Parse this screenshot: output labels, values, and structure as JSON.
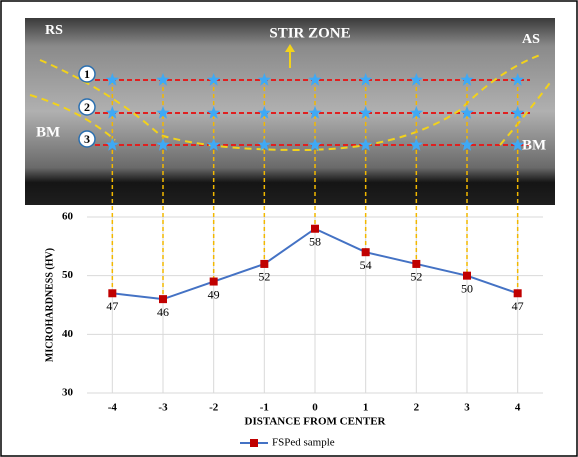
{
  "micrograph": {
    "left_side": "RS",
    "right_side": "AS",
    "zone": "STIR ZONE",
    "base_left": "BM",
    "base_right": "BM",
    "rows": [
      "1",
      "2",
      "3"
    ]
  },
  "chart_data": {
    "type": "line",
    "x": [
      -4,
      -3,
      -2,
      -1,
      0,
      1,
      2,
      3,
      4
    ],
    "series": [
      {
        "name": "FSPed sample",
        "color": "#4472c4",
        "marker_color": "#c00000",
        "values": [
          47,
          46,
          49,
          52,
          58,
          54,
          52,
          50,
          47
        ]
      }
    ],
    "xlim": [
      -4.5,
      4.5
    ],
    "xticks": [
      -4,
      -3,
      -2,
      -1,
      0,
      1,
      2,
      3,
      4
    ],
    "ylim": [
      30,
      60
    ],
    "yticks": [
      30,
      40,
      50,
      60
    ],
    "x_label": "DISTANCE FROM CENTER",
    "y_label": "MICROHARDNESS (HV)",
    "grid": true,
    "legend": "bottom"
  }
}
